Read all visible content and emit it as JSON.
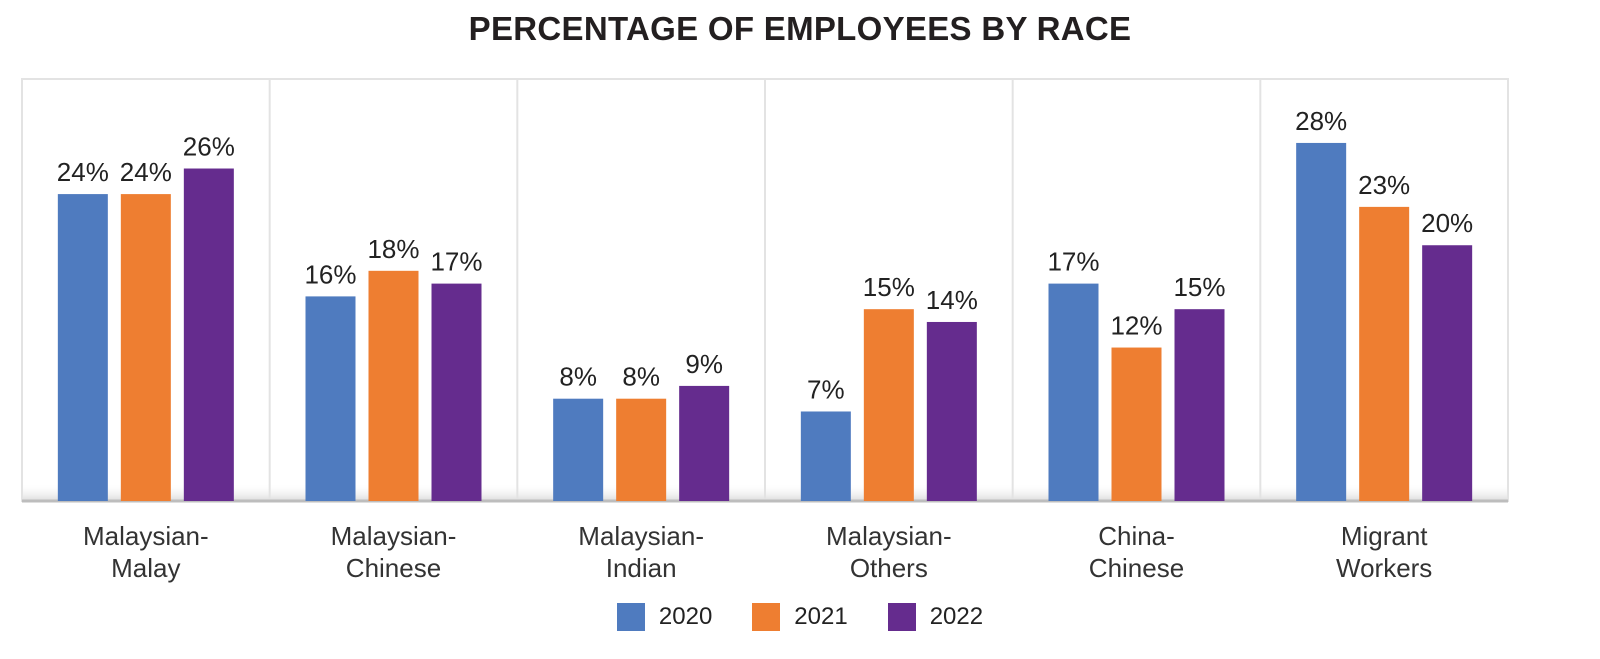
{
  "chart_data": {
    "type": "bar",
    "title": "PERCENTAGE OF EMPLOYEES BY RACE",
    "categories": [
      [
        "Malaysian-",
        "Malay"
      ],
      [
        "Malaysian-",
        "Chinese"
      ],
      [
        "Malaysian-",
        "Indian"
      ],
      [
        "Malaysian-",
        "Others"
      ],
      [
        "China-",
        "Chinese"
      ],
      [
        "Migrant",
        "Workers"
      ]
    ],
    "series": [
      {
        "name": "2020",
        "color": "#4f7bbf",
        "values": [
          24,
          16,
          8,
          7,
          17,
          28
        ]
      },
      {
        "name": "2021",
        "color": "#ee7e31",
        "values": [
          24,
          18,
          8,
          15,
          12,
          23
        ]
      },
      {
        "name": "2022",
        "color": "#652c8e",
        "values": [
          26,
          17,
          9,
          14,
          15,
          20
        ]
      }
    ],
    "value_suffix": "%",
    "ylim": [
      0,
      33
    ],
    "grid": "vertical category separators",
    "legend_position": "bottom-center"
  }
}
